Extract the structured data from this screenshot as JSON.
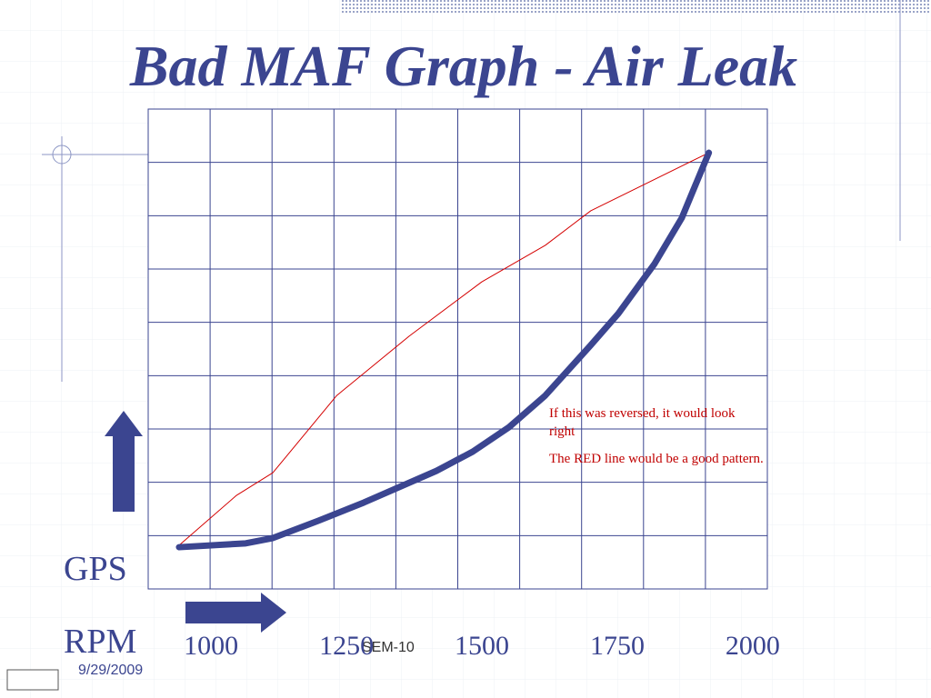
{
  "chart_data": {
    "type": "line",
    "title": "Bad MAF Graph - Air Leak",
    "y_label": "GPS",
    "x_label": "RPM",
    "xlim": [
      884,
      2027
    ],
    "ylim": [
      0,
      100
    ],
    "xticks": [
      1000,
      1250,
      1500,
      1750,
      2000
    ],
    "annotations": [
      "If this was reversed, it would look right",
      "The RED line would be a good pattern."
    ],
    "footer_center": "SEM-10",
    "footer_date": "9/29/2009",
    "series": [
      {
        "color": "#d40000",
        "width": 1,
        "x": [
          941,
          1047,
          1114,
          1232,
          1366,
          1500,
          1617,
          1701,
          1919
        ],
        "values": [
          9.1,
          19.5,
          24.2,
          40.3,
          52.7,
          64.0,
          71.6,
          78.8,
          90.9
        ]
      },
      {
        "color": "#3b4590",
        "width": 7,
        "x": [
          941,
          1064,
          1114,
          1198,
          1282,
          1416,
          1483,
          1550,
          1617,
          1701,
          1752,
          1819,
          1869,
          1919
        ],
        "values": [
          8.7,
          9.5,
          10.6,
          14.2,
          18.0,
          24.6,
          28.6,
          33.7,
          40.3,
          50.8,
          57.4,
          67.8,
          77.3,
          90.9
        ]
      }
    ]
  }
}
